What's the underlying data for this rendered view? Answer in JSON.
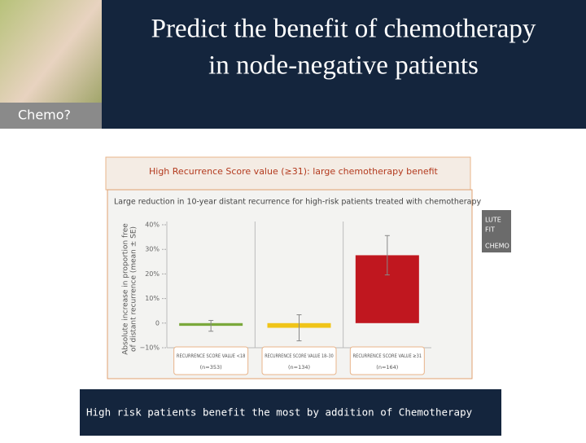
{
  "slide": {
    "title_lines": [
      "Predict the benefit of chemotherapy",
      "in node-negative patients"
    ],
    "photo_label": "Chemo?",
    "banner": "High Recurrence Score value (≥31): large chemotherapy benefit",
    "side_fragment": [
      "LUTE",
      "FIT",
      "CHEMO"
    ],
    "caption": "High risk patients benefit the most by addition of Chemotherapy"
  },
  "chart_data": {
    "type": "bar",
    "title": "Large reduction in 10-year distant recurrence for high-risk patients treated with chemotherapy",
    "y_label_lines": [
      "Absolute increase in proportion free",
      "of distant recurrence (mean ± SE)"
    ],
    "categories": [
      "RECURRENCE SCORE VALUE <18",
      "RECURRENCE SCORE VALUE 18–30",
      "RECURRENCE SCORE VALUE ≥31"
    ],
    "sample_sizes": [
      "(n=353)",
      "(n=134)",
      "(n=164)"
    ],
    "values": [
      -1.1,
      -1.9,
      27.6
    ],
    "errors": [
      2.2,
      5.3,
      8.0
    ],
    "colors": [
      "#7aa83c",
      "#f0c419",
      "#c0171f"
    ],
    "ylim": [
      -10,
      40
    ],
    "yticks": [
      {
        "value": -10,
        "label": "−10%"
      },
      0,
      {
        "value": 10,
        "label": "10%"
      },
      {
        "value": 20,
        "label": "20%"
      },
      {
        "value": 30,
        "label": "30%"
      },
      {
        "value": 40,
        "label": "40%"
      }
    ]
  }
}
